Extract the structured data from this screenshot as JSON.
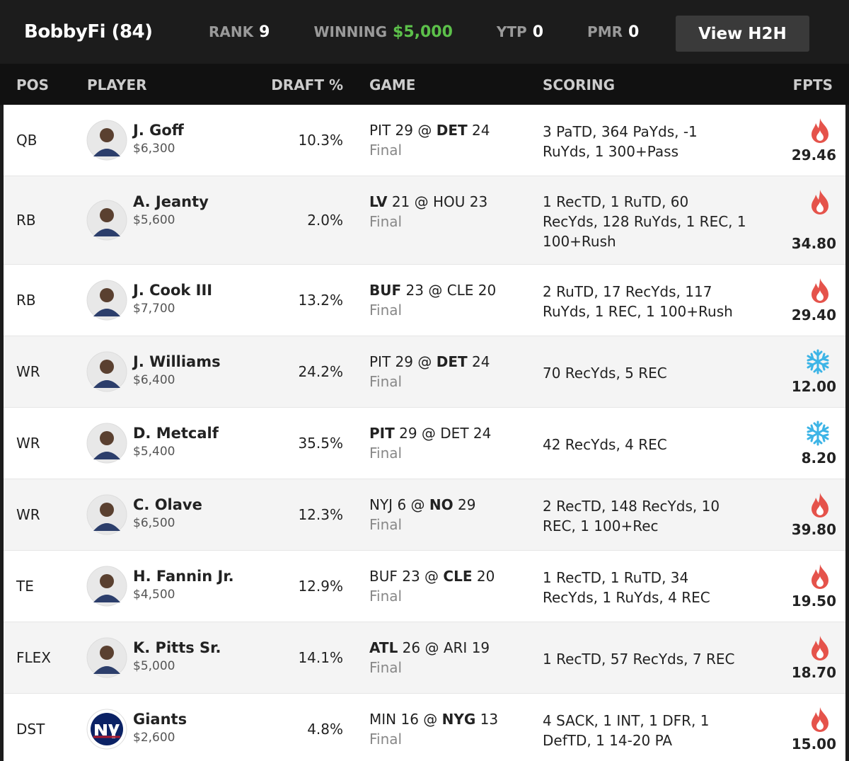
{
  "header": {
    "name": "BobbyFi (84)",
    "stats": [
      {
        "label": "RANK",
        "value": "9"
      },
      {
        "label": "WINNING",
        "value": "$5,000",
        "highlight": true
      },
      {
        "label": "YTP",
        "value": "0"
      },
      {
        "label": "PMR",
        "value": "0"
      }
    ],
    "button": "View H2H"
  },
  "table": {
    "columns": [
      "POS",
      "PLAYER",
      "DRAFT %",
      "GAME",
      "SCORING",
      "FPTS"
    ],
    "game_separator": "@",
    "rows": [
      {
        "pos": "QB",
        "name": "J. Goff",
        "salary": "$6,300",
        "draft": "10.3%",
        "away": "PIT",
        "away_score": "29",
        "home": "DET",
        "home_score": "24",
        "bold": "home",
        "status": "Final",
        "scoring": "3 PaTD, 364 PaYds, -1 RuYds, 1 300+Pass",
        "icon": "fire",
        "fpts": "29.46"
      },
      {
        "pos": "RB",
        "name": "A. Jeanty",
        "salary": "$5,600",
        "draft": "2.0%",
        "away": "LV",
        "away_score": "21",
        "home": "HOU",
        "home_score": "23",
        "bold": "away",
        "status": "Final",
        "scoring": "1 RecTD, 1 RuTD, 60 RecYds, 128 RuYds, 1 REC, 1 100+Rush",
        "icon": "fire",
        "fpts": "34.80"
      },
      {
        "pos": "RB",
        "name": "J. Cook III",
        "salary": "$7,700",
        "draft": "13.2%",
        "away": "BUF",
        "away_score": "23",
        "home": "CLE",
        "home_score": "20",
        "bold": "away",
        "status": "Final",
        "scoring": "2 RuTD, 17 RecYds, 117 RuYds, 1 REC, 1 100+Rush",
        "icon": "fire",
        "fpts": "29.40"
      },
      {
        "pos": "WR",
        "name": "J. Williams",
        "salary": "$6,400",
        "draft": "24.2%",
        "away": "PIT",
        "away_score": "29",
        "home": "DET",
        "home_score": "24",
        "bold": "home",
        "status": "Final",
        "scoring": "70 RecYds, 5 REC",
        "icon": "ice",
        "fpts": "12.00"
      },
      {
        "pos": "WR",
        "name": "D. Metcalf",
        "salary": "$5,400",
        "draft": "35.5%",
        "away": "PIT",
        "away_score": "29",
        "home": "DET",
        "home_score": "24",
        "bold": "away",
        "status": "Final",
        "scoring": "42 RecYds, 4 REC",
        "icon": "ice",
        "fpts": "8.20"
      },
      {
        "pos": "WR",
        "name": "C. Olave",
        "salary": "$6,500",
        "draft": "12.3%",
        "away": "NYJ",
        "away_score": "6",
        "home": "NO",
        "home_score": "29",
        "bold": "home",
        "status": "Final",
        "scoring": "2 RecTD, 148 RecYds, 10 REC, 1 100+Rec",
        "icon": "fire",
        "fpts": "39.80"
      },
      {
        "pos": "TE",
        "name": "H. Fannin Jr.",
        "salary": "$4,500",
        "draft": "12.9%",
        "away": "BUF",
        "away_score": "23",
        "home": "CLE",
        "home_score": "20",
        "bold": "home",
        "status": "Final",
        "scoring": "1 RecTD, 1 RuTD, 34 RecYds, 1 RuYds, 4 REC",
        "icon": "fire",
        "fpts": "19.50"
      },
      {
        "pos": "FLEX",
        "name": "K. Pitts Sr.",
        "salary": "$5,000",
        "draft": "14.1%",
        "away": "ATL",
        "away_score": "26",
        "home": "ARI",
        "home_score": "19",
        "bold": "away",
        "status": "Final",
        "scoring": "1 RecTD, 57 RecYds, 7 REC",
        "icon": "fire",
        "fpts": "18.70"
      },
      {
        "pos": "DST",
        "name": "Giants",
        "salary": "$2,600",
        "draft": "4.8%",
        "away": "MIN",
        "away_score": "16",
        "home": "NYG",
        "home_score": "13",
        "bold": "home",
        "status": "Final",
        "scoring": "4 SACK, 1 INT, 1 DFR, 1 DefTD, 1 14-20 PA",
        "icon": "fire",
        "fpts": "15.00",
        "logo": true
      }
    ]
  }
}
